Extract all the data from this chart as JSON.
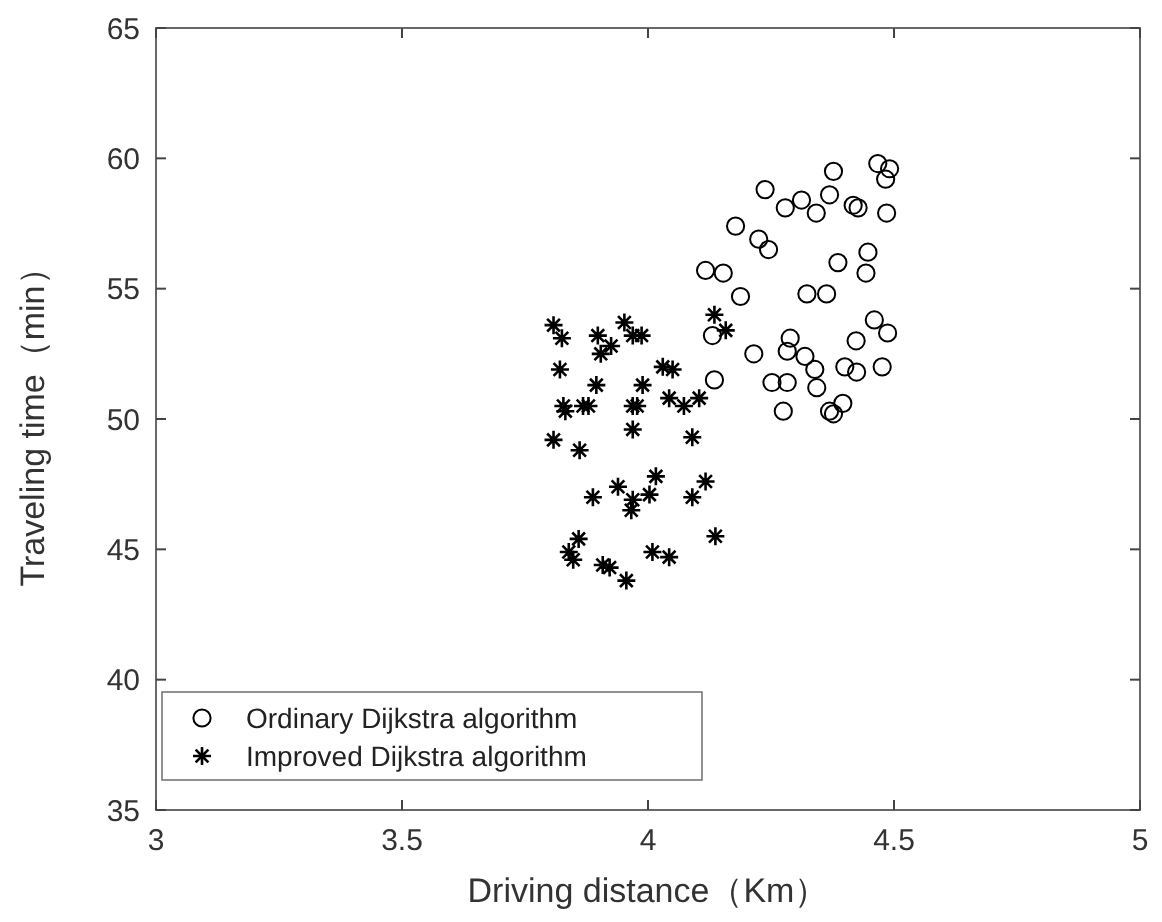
{
  "chart_data": {
    "type": "scatter",
    "xlabel": "Driving distance（Km）",
    "ylabel": "Traveling time（min）",
    "xlim": [
      3,
      5
    ],
    "ylim": [
      35,
      65
    ],
    "xticks": [
      3,
      3.5,
      4,
      4.5,
      5
    ],
    "yticks": [
      35,
      40,
      45,
      50,
      55,
      60,
      65
    ],
    "grid": false,
    "legend": "bottom left",
    "series": [
      {
        "name": "Ordinary Dijkstra algorithm",
        "color": "#000000",
        "marker": "circle",
        "x": [
          4.467,
          4.491,
          4.483,
          4.377,
          4.238,
          4.279,
          4.312,
          4.342,
          4.369,
          4.417,
          4.427,
          4.485,
          4.178,
          4.225,
          4.245,
          4.447,
          4.386,
          4.443,
          4.117,
          4.153,
          4.188,
          4.323,
          4.363,
          4.131,
          4.46,
          4.487,
          4.423,
          4.289,
          4.215,
          4.283,
          4.319,
          4.339,
          4.4,
          4.424,
          4.476,
          4.135,
          4.252,
          4.283,
          4.343,
          4.396,
          4.275,
          4.369,
          4.377
        ],
        "values": [
          59.8,
          59.6,
          59.2,
          59.5,
          58.8,
          58.1,
          58.4,
          57.9,
          58.6,
          58.2,
          58.1,
          57.9,
          57.4,
          56.9,
          56.5,
          56.4,
          56,
          55.6,
          55.7,
          55.6,
          54.7,
          54.8,
          54.8,
          53.2,
          53.8,
          53.3,
          53,
          53.1,
          52.5,
          52.6,
          52.4,
          51.9,
          52,
          51.8,
          52,
          51.5,
          51.4,
          51.4,
          51.2,
          50.6,
          50.3,
          50.3,
          50.2
        ]
      },
      {
        "name": "Improved Dijkstra algorithm",
        "color": "#000000",
        "marker": "cross",
        "x": [
          3.808,
          3.825,
          3.821,
          3.828,
          3.832,
          3.808,
          3.861,
          3.868,
          3.879,
          3.895,
          3.898,
          3.904,
          3.925,
          3.952,
          3.969,
          3.987,
          3.969,
          3.978,
          3.969,
          3.989,
          4.03,
          4.05,
          4.043,
          4.073,
          4.104,
          4.09,
          4.135,
          4.158,
          3.888,
          3.939,
          3.969,
          3.966,
          4.003,
          4.016,
          4.09,
          4.117,
          3.859,
          3.839,
          3.848,
          3.908,
          3.922,
          3.956,
          4.009,
          4.043,
          4.137
        ],
        "values": [
          53.6,
          53.1,
          51.9,
          50.5,
          50.3,
          49.2,
          48.8,
          50.5,
          50.5,
          51.3,
          53.2,
          52.5,
          52.8,
          53.7,
          53.2,
          53.2,
          50.5,
          50.5,
          49.6,
          51.3,
          52,
          51.9,
          50.8,
          50.5,
          50.8,
          49.3,
          54,
          53.4,
          47,
          47.4,
          46.9,
          46.5,
          47.1,
          47.8,
          47,
          47.6,
          45.4,
          44.9,
          44.6,
          44.4,
          44.3,
          43.8,
          44.9,
          44.7,
          45.5
        ]
      }
    ]
  }
}
